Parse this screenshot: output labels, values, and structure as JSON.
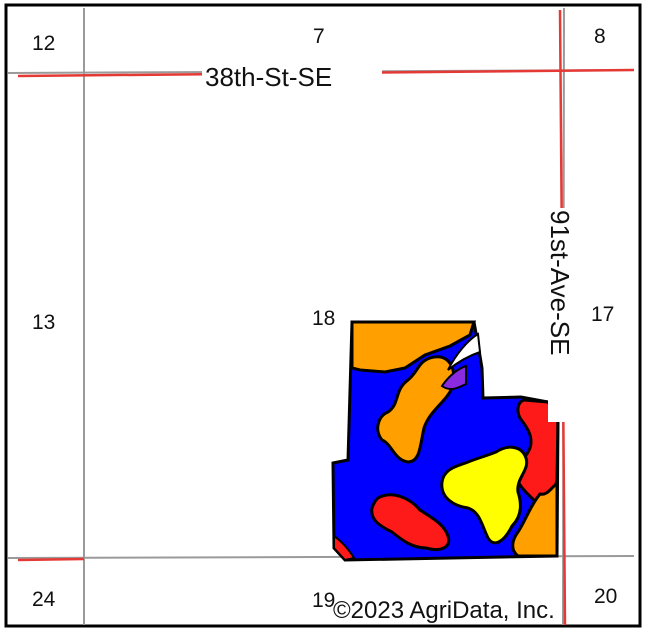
{
  "map": {
    "sections": {
      "s12": "12",
      "s7": "7",
      "s8": "8",
      "s13": "13",
      "s18": "18",
      "s17": "17",
      "s24": "24",
      "s19": "19",
      "s20": "20"
    },
    "roads": {
      "east_west": "38th-St-SE",
      "north_south": "91st-Ave-SE"
    },
    "copyright": "©2023 AgriData, Inc.",
    "colors": {
      "road": "#e53935",
      "section_line": "#9a9a9a",
      "soil_blue": "#0000ff",
      "soil_orange": "#ff9f00",
      "soil_red": "#ff1a1a",
      "soil_yellow": "#ffff00",
      "soil_purple": "#8a2be2",
      "boundary": "#000000"
    },
    "soil_units": [
      "blue",
      "orange",
      "red",
      "yellow",
      "purple"
    ]
  }
}
